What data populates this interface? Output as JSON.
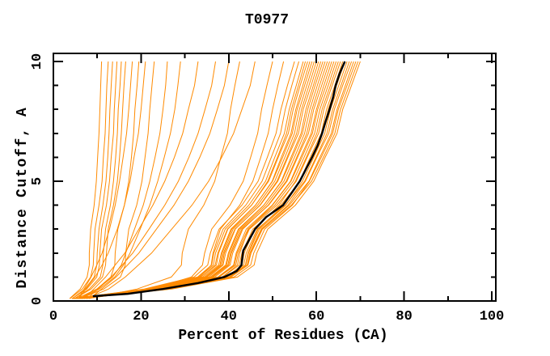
{
  "chart_data": {
    "type": "line",
    "title": "T0977",
    "xlabel": "Percent of Residues (CA)",
    "ylabel": "Distance Cutoff, A",
    "xlim": [
      0,
      101
    ],
    "ylim": [
      0,
      10.3
    ],
    "grid": false,
    "legend": null,
    "x_major_ticks": [
      0,
      20,
      40,
      60,
      80,
      100
    ],
    "x_minor_ticks": [
      10,
      30,
      50,
      70,
      90
    ],
    "y_major_ticks": [
      0,
      5,
      10
    ],
    "y_minor_ticks": [
      1,
      2,
      3,
      4,
      6,
      7,
      8,
      9
    ],
    "colors": {
      "models": "#ff8a00",
      "highlight": "#000000",
      "axes": "#000000",
      "text": "#000000",
      "background": "#ffffff"
    },
    "cutoffs": [
      0.1,
      0.5,
      1,
      1.5,
      2,
      3,
      4,
      5,
      6,
      7,
      8,
      9,
      10
    ],
    "model_curves": [
      [
        3.7,
        6.1,
        7.7,
        8.2,
        8.2,
        8.5,
        9.3,
        9.8,
        10.1,
        10.4,
        10.6,
        10.8,
        11
      ],
      [
        3.8,
        6.6,
        8.5,
        9.1,
        9.2,
        9.5,
        10.4,
        11.1,
        11.4,
        11.8,
        12,
        12.2,
        12.5
      ],
      [
        4.3,
        7.2,
        9.3,
        9.9,
        10,
        10.4,
        11.3,
        12,
        12.4,
        12.7,
        12.9,
        13.2,
        13.5
      ],
      [
        4.3,
        7.6,
        9.9,
        10.5,
        10.6,
        11,
        12.1,
        12.8,
        13.2,
        13.7,
        13.9,
        14.2,
        14.5
      ],
      [
        4.8,
        8.2,
        10.7,
        11.3,
        11.4,
        11.9,
        13,
        13.7,
        14.2,
        14.6,
        14.8,
        15.2,
        15.5
      ],
      [
        4.9,
        8.6,
        11.2,
        11.9,
        12.1,
        12.5,
        13.7,
        14.6,
        15.1,
        15.5,
        15.8,
        16.1,
        16.5
      ],
      [
        5.7,
        7,
        8.6,
        9.9,
        11.1,
        12.8,
        14.1,
        15.1,
        15.9,
        16.7,
        17.2,
        17.6,
        18
      ],
      [
        5.4,
        9.9,
        13.1,
        14,
        14.1,
        14.7,
        16.2,
        17.2,
        17.8,
        18.3,
        18.6,
        19.1,
        19.5
      ],
      [
        5.8,
        7.4,
        9.5,
        11.1,
        12.5,
        14.6,
        16.2,
        17.5,
        18.4,
        19.4,
        20,
        20.5,
        21
      ],
      [
        6,
        11.5,
        15.3,
        16.4,
        16.5,
        17.2,
        19,
        20.2,
        20.9,
        21.6,
        22,
        22.5,
        23
      ],
      [
        6,
        10,
        13.5,
        15.5,
        16.5,
        18.5,
        20.5,
        22,
        23.2,
        24.3,
        25,
        25.6,
        26
      ],
      [
        6.3,
        10.5,
        14,
        16,
        17.5,
        19.8,
        22,
        23.8,
        25.3,
        26.7,
        27.7,
        28.4,
        29
      ],
      [
        7.1,
        9.2,
        11.9,
        14.1,
        16.3,
        19.5,
        22.7,
        25.4,
        27.6,
        29.5,
        30.8,
        32.2,
        33
      ],
      [
        7.7,
        10.2,
        13.2,
        15.7,
        18.1,
        21.8,
        25.4,
        28.5,
        30.9,
        33,
        34.6,
        36.1,
        37
      ],
      [
        8.3,
        11,
        14.3,
        16.9,
        19.5,
        23.5,
        27.5,
        30.8,
        33.4,
        35.7,
        37.4,
        39,
        40
      ],
      [
        8.1,
        19.1,
        26.9,
        29.2,
        29.4,
        30.8,
        34.3,
        36.8,
        38.2,
        39.7,
        40.4,
        41.4,
        42.5
      ],
      [
        7.5,
        12.6,
        16.4,
        19.4,
        22.4,
        27,
        31.6,
        35.4,
        38.4,
        41.1,
        43,
        44.9,
        46
      ],
      [
        7,
        22.3,
        31.5,
        34,
        34.5,
        36.1,
        40.3,
        43.3,
        45,
        46.6,
        47.5,
        48.7,
        50
      ],
      [
        7.5,
        23.8,
        33.4,
        36,
        36.4,
        38.1,
        42.5,
        45.5,
        47.3,
        49,
        50,
        51.2,
        52.5
      ],
      [
        4.6,
        20.7,
        32.1,
        35.2,
        35.8,
        37.8,
        43.0,
        46.7,
        48.8,
        50.8,
        51.9,
        53.4,
        55
      ],
      [
        5.1,
        21.4,
        32.9,
        36.1,
        36.6,
        38.7,
        43.9,
        47.6,
        49.7,
        51.8,
        52.9,
        54.4,
        56
      ],
      [
        4.6,
        21.4,
        33.2,
        36.5,
        37.0,
        39.2,
        44.6,
        48.4,
        50.5,
        52.7,
        53.8,
        55.4,
        57
      ],
      [
        5.6,
        22.2,
        34.0,
        37.2,
        37.7,
        39.8,
        45.2,
        48.9,
        51.1,
        53.2,
        54.3,
        55.9,
        57.5
      ],
      [
        4.2,
        21.4,
        33.6,
        36.9,
        37.5,
        39.7,
        45.2,
        49.1,
        51.3,
        53.6,
        54.7,
        56.3,
        58
      ],
      [
        6.1,
        22.9,
        34.7,
        38.0,
        38.5,
        40.7,
        46.1,
        49.9,
        52.0,
        54.2,
        55.3,
        56.9,
        58.5
      ],
      [
        4.7,
        22.0,
        34.4,
        37.7,
        38.3,
        40.5,
        46.1,
        50.0,
        52.3,
        54.5,
        55.6,
        57.3,
        59
      ],
      [
        5.2,
        22.5,
        34.9,
        38.2,
        38.8,
        41.0,
        46.6,
        50.5,
        52.8,
        55.0,
        56.1,
        57.8,
        59.5
      ],
      [
        5.7,
        23.0,
        35.4,
        38.7,
        39.3,
        41.5,
        47.1,
        51.0,
        53.3,
        55.5,
        56.6,
        58.3,
        60
      ],
      [
        4.2,
        22.2,
        35.0,
        38.5,
        39.0,
        41.4,
        47.2,
        51.2,
        53.5,
        55.9,
        57.0,
        58.8,
        60.5
      ],
      [
        6.2,
        23.7,
        36.1,
        39.5,
        40.1,
        42.4,
        48.0,
        52.0,
        54.2,
        56.5,
        57.6,
        59.3,
        61
      ],
      [
        4.8,
        22.9,
        35.8,
        39.3,
        39.9,
        42.2,
        48.0,
        52.1,
        54.5,
        56.8,
        58.0,
        59.7,
        61.5
      ],
      [
        5.3,
        23.4,
        36.3,
        39.8,
        40.4,
        42.7,
        48.5,
        52.6,
        55.0,
        57.3,
        58.5,
        60.2,
        62
      ],
      [
        5.8,
        23.9,
        36.8,
        40.3,
        40.9,
        43.2,
        49.0,
        53.1,
        55.5,
        57.8,
        59.0,
        60.7,
        62.5
      ],
      [
        4.3,
        23.1,
        36.4,
        40.0,
        40.6,
        43.0,
        49.1,
        53.3,
        55.7,
        58.2,
        59.4,
        61.2,
        63
      ],
      [
        6.3,
        24.6,
        37.5,
        41.1,
        41.7,
        44.0,
        49.9,
        54.1,
        56.4,
        58.8,
        60.0,
        61.7,
        63.5
      ],
      [
        4.8,
        24.5,
        38.5,
        42.0,
        42.5,
        44.5,
        50.0,
        54.2,
        56.7,
        59.1,
        60.3,
        62.2,
        64
      ],
      [
        5.3,
        24.2,
        37.7,
        41.3,
        41.9,
        44.4,
        50.5,
        54.7,
        57.2,
        59.6,
        60.8,
        62.7,
        64.5
      ],
      [
        5.8,
        25.5,
        39.5,
        43.0,
        43.5,
        45.9,
        51.5,
        55.2,
        57.7,
        60.1,
        61.3,
        63.2,
        65
      ],
      [
        4.4,
        23.9,
        37.8,
        41.6,
        42.2,
        44.7,
        51.0,
        55.4,
        57.9,
        60.5,
        61.7,
        63.6,
        65.5
      ],
      [
        6.3,
        26.0,
        40.0,
        43.8,
        44.4,
        46.7,
        52.5,
        56.2,
        58.6,
        61.1,
        62.3,
        64.2,
        66
      ],
      [
        4.9,
        24.6,
        38.6,
        42.4,
        43.0,
        45.5,
        51.9,
        56.3,
        58.9,
        61.4,
        62.7,
        64.6,
        66.5
      ],
      [
        5.4,
        26.1,
        40.1,
        43.9,
        44.5,
        47.0,
        53.0,
        56.8,
        59.4,
        61.9,
        63.2,
        65.1,
        67
      ],
      [
        5.9,
        25.6,
        39.6,
        43.4,
        44.0,
        46.5,
        52.9,
        57.3,
        59.9,
        62.4,
        63.7,
        65.6,
        67.5
      ],
      [
        4.5,
        25.8,
        40.5,
        44.3,
        45.0,
        47.5,
        53.5,
        57.5,
        60.1,
        62.8,
        64.1,
        66.0,
        68
      ],
      [
        6.4,
        26.3,
        40.3,
        44.2,
        44.8,
        47.4,
        53.8,
        58.3,
        60.8,
        63.4,
        64.7,
        66.6,
        68.5
      ],
      [
        5.0,
        26.5,
        41.2,
        45.0,
        45.7,
        48.2,
        54.5,
        58.4,
        61.1,
        63.7,
        65.0,
        67.0,
        69
      ],
      [
        5.5,
        25.9,
        40.5,
        44.4,
        45.1,
        47.7,
        54.3,
        58.9,
        61.6,
        64.2,
        65.5,
        67.5,
        69.5
      ],
      [
        5.5,
        27.0,
        42.0,
        45.8,
        46.4,
        48.9,
        55.2,
        59.4,
        62.0,
        64.7,
        66.0,
        68.0,
        70
      ]
    ],
    "highlight_curve": {
      "points": [
        [
          9,
          0.2
        ],
        [
          17,
          0.3
        ],
        [
          25,
          0.5
        ],
        [
          33,
          0.75
        ],
        [
          39,
          1
        ],
        [
          41.8,
          1.25
        ],
        [
          42.9,
          1.5
        ],
        [
          43.3,
          2.1
        ],
        [
          44.5,
          2.5
        ],
        [
          46,
          3
        ],
        [
          48.5,
          3.5
        ],
        [
          52.4,
          4
        ],
        [
          54.3,
          4.5
        ],
        [
          56.2,
          5
        ],
        [
          57.6,
          5.5
        ],
        [
          59,
          6
        ],
        [
          60.3,
          6.5
        ],
        [
          61.3,
          7
        ],
        [
          62.1,
          7.5
        ],
        [
          63,
          8
        ],
        [
          63.8,
          8.5
        ],
        [
          64.4,
          9
        ],
        [
          65.3,
          9.5
        ],
        [
          66.5,
          10
        ]
      ]
    }
  }
}
